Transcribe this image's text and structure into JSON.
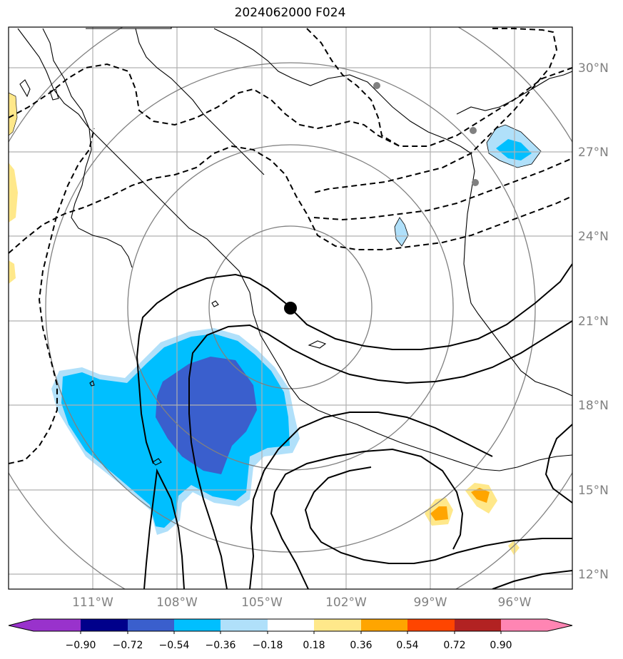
{
  "title": "2024062000 F024",
  "lat_labels": [
    "30°N",
    "27°N",
    "24°N",
    "21°N",
    "18°N",
    "15°N",
    "12°N"
  ],
  "lon_labels": [
    "111°W",
    "108°W",
    "105°W",
    "102°W",
    "99°W",
    "96°W"
  ],
  "colorbar": {
    "ticks": [
      "−0.90",
      "−0.72",
      "−0.54",
      "−0.36",
      "−0.18",
      "0.18",
      "0.36",
      "0.54",
      "0.72",
      "0.90"
    ],
    "colors": [
      "#9932cc",
      "#00008b",
      "#3a5fcd",
      "#00bfff",
      "#b0e0fa",
      "#ffffff",
      "#ffe88a",
      "#ffa500",
      "#ff4500",
      "#b22222",
      "#ff85b3"
    ]
  },
  "colors": {
    "grid": "#b0b0b0",
    "range_rings": "#808080",
    "contour": "#000000",
    "center_marker": "#000000",
    "station_marker": "#808080"
  },
  "icons": {
    "center": "storm-center-dot",
    "stations": "station-dot"
  }
}
